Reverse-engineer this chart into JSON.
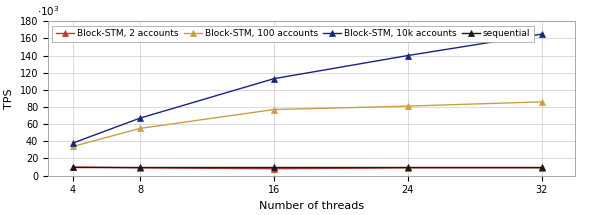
{
  "x": [
    4,
    8,
    16,
    24,
    32
  ],
  "series": [
    {
      "label": "Block-STM, 2 accounts",
      "y": [
        10000,
        9000,
        8000,
        9000,
        9000
      ],
      "color": "#c0392b",
      "marker": "^",
      "linestyle": "-",
      "markercolor": "#c0392b"
    },
    {
      "label": "Block-STM, 100 accounts",
      "y": [
        34000,
        55000,
        77000,
        81000,
        86000
      ],
      "color": "#c8a043",
      "marker": "^",
      "linestyle": "-",
      "markercolor": "#c8a043"
    },
    {
      "label": "Block-STM, 10k accounts",
      "y": [
        38000,
        67000,
        113000,
        140000,
        165000
      ],
      "color": "#1a237e",
      "marker": "^",
      "linestyle": "-",
      "markercolor": "#1a237e"
    },
    {
      "label": "sequential",
      "y": [
        10500,
        10500,
        10500,
        10500,
        10500
      ],
      "color": "#1a1a1a",
      "marker": "^",
      "linestyle": "-",
      "markercolor": "#1a1a1a"
    }
  ],
  "xlabel": "Number of threads",
  "ylabel": "TPS",
  "ylim": [
    0,
    180000
  ],
  "ytick_values": [
    0,
    20000,
    40000,
    60000,
    80000,
    100000,
    120000,
    140000,
    160000,
    180000
  ],
  "xticks": [
    4,
    8,
    16,
    24,
    32
  ],
  "xlim": [
    2.5,
    34
  ],
  "scale_factor": 1000,
  "background_color": "#ffffff",
  "grid_color": "#cccccc",
  "legend_fontsize": 6.5,
  "axis_label_fontsize": 8,
  "tick_fontsize": 7,
  "linewidth": 1.0,
  "markersize": 4
}
